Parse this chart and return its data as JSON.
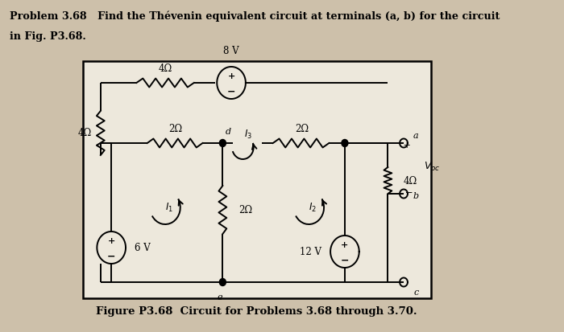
{
  "bg_color": "#cdc0aa",
  "box_bg": "#ede8dc",
  "title_line1": "Problem 3.68   Find the Thévenin equivalent circuit at terminals (a, b) for the circuit",
  "title_line2": "in Fig. P3.68.",
  "caption": "Figure P3.68  Circuit for Problems 3.68 through 3.70.",
  "lw": 1.4
}
